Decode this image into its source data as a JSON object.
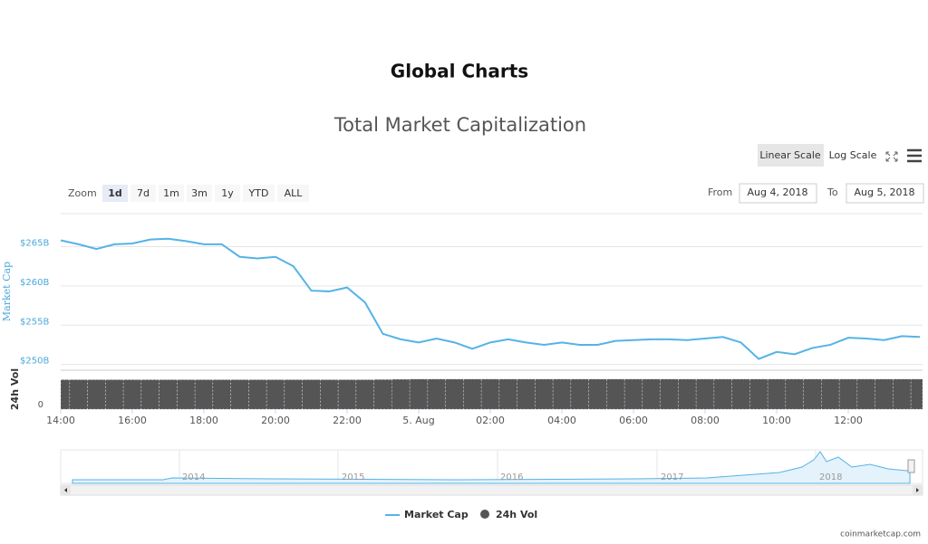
{
  "page": {
    "heading": "Global Charts",
    "credit": "coinmarketcap.com"
  },
  "controls": {
    "scale_buttons": [
      "Linear Scale",
      "Log Scale"
    ],
    "zoom_label": "Zoom",
    "zoom_buttons": [
      "1d",
      "7d",
      "1m",
      "3m",
      "1y",
      "YTD",
      "ALL"
    ],
    "from_label": "From",
    "from_value": "Aug 4, 2018",
    "to_label": "To",
    "to_value": "Aug 5, 2018"
  },
  "navigator": {
    "labels": [
      "2014",
      "2015",
      "2016",
      "2017",
      "2018"
    ]
  },
  "chart_data": {
    "type": "line",
    "title": "Total Market Capitalization",
    "y_label": "Market Cap",
    "y2_label": "24h Vol",
    "categories": [
      "14:00",
      null,
      null,
      null,
      "16:00",
      null,
      null,
      null,
      "18:00",
      null,
      null,
      null,
      "20:00",
      null,
      null,
      null,
      "22:00",
      null,
      null,
      null,
      "5. Aug",
      null,
      null,
      null,
      "02:00",
      null,
      null,
      null,
      "04:00",
      null,
      null,
      null,
      "06:00",
      null,
      null,
      null,
      "08:00",
      null,
      null,
      null,
      "10:00",
      null,
      null,
      null,
      "12:00",
      null,
      null,
      null,
      null
    ],
    "ylim": [
      249.5,
      269.2
    ],
    "yticks": [
      {
        "value": 250,
        "label": "$250B"
      },
      {
        "value": 255,
        "label": "$255B"
      },
      {
        "value": 260,
        "label": "$260B"
      },
      {
        "value": 265,
        "label": "$265B"
      }
    ],
    "y2lim": [
      0,
      18
    ],
    "y2ticks": [
      0
    ],
    "grid": true,
    "series": [
      {
        "name": "Market Cap",
        "color": "#55b3e6",
        "values": [
          265.8,
          265.3,
          264.7,
          265.3,
          265.4,
          265.9,
          266.0,
          265.7,
          265.3,
          265.3,
          263.7,
          263.5,
          263.7,
          262.5,
          259.4,
          259.3,
          259.8,
          257.9,
          253.9,
          253.2,
          252.8,
          253.3,
          252.8,
          252.0,
          252.8,
          253.2,
          252.8,
          252.5,
          252.8,
          252.5,
          252.5,
          253.0,
          253.1,
          253.2,
          253.2,
          253.1,
          253.3,
          253.5,
          252.8,
          250.7,
          251.6,
          251.3,
          252.1,
          252.5,
          253.4,
          253.3,
          253.1,
          253.6,
          253.5
        ]
      },
      {
        "name": "24h Vol",
        "color": "#555555",
        "axis": "y2",
        "values": [
          15.0,
          15.0,
          15.0,
          15.0,
          15.0,
          15.0,
          15.0,
          15.0,
          15.0,
          15.0,
          15.0,
          15.0,
          15.0,
          15.0,
          15.0,
          15.0,
          15.0,
          15.0,
          15.1,
          15.2,
          15.3,
          15.3,
          15.3,
          15.3,
          15.3,
          15.3,
          15.3,
          15.3,
          15.3,
          15.3,
          15.3,
          15.3,
          15.3,
          15.3,
          15.3,
          15.3,
          15.3,
          15.3,
          15.3,
          15.3,
          15.3,
          15.3,
          15.3,
          15.3,
          15.3,
          15.3,
          15.3,
          15.3,
          15.3
        ]
      }
    ]
  }
}
